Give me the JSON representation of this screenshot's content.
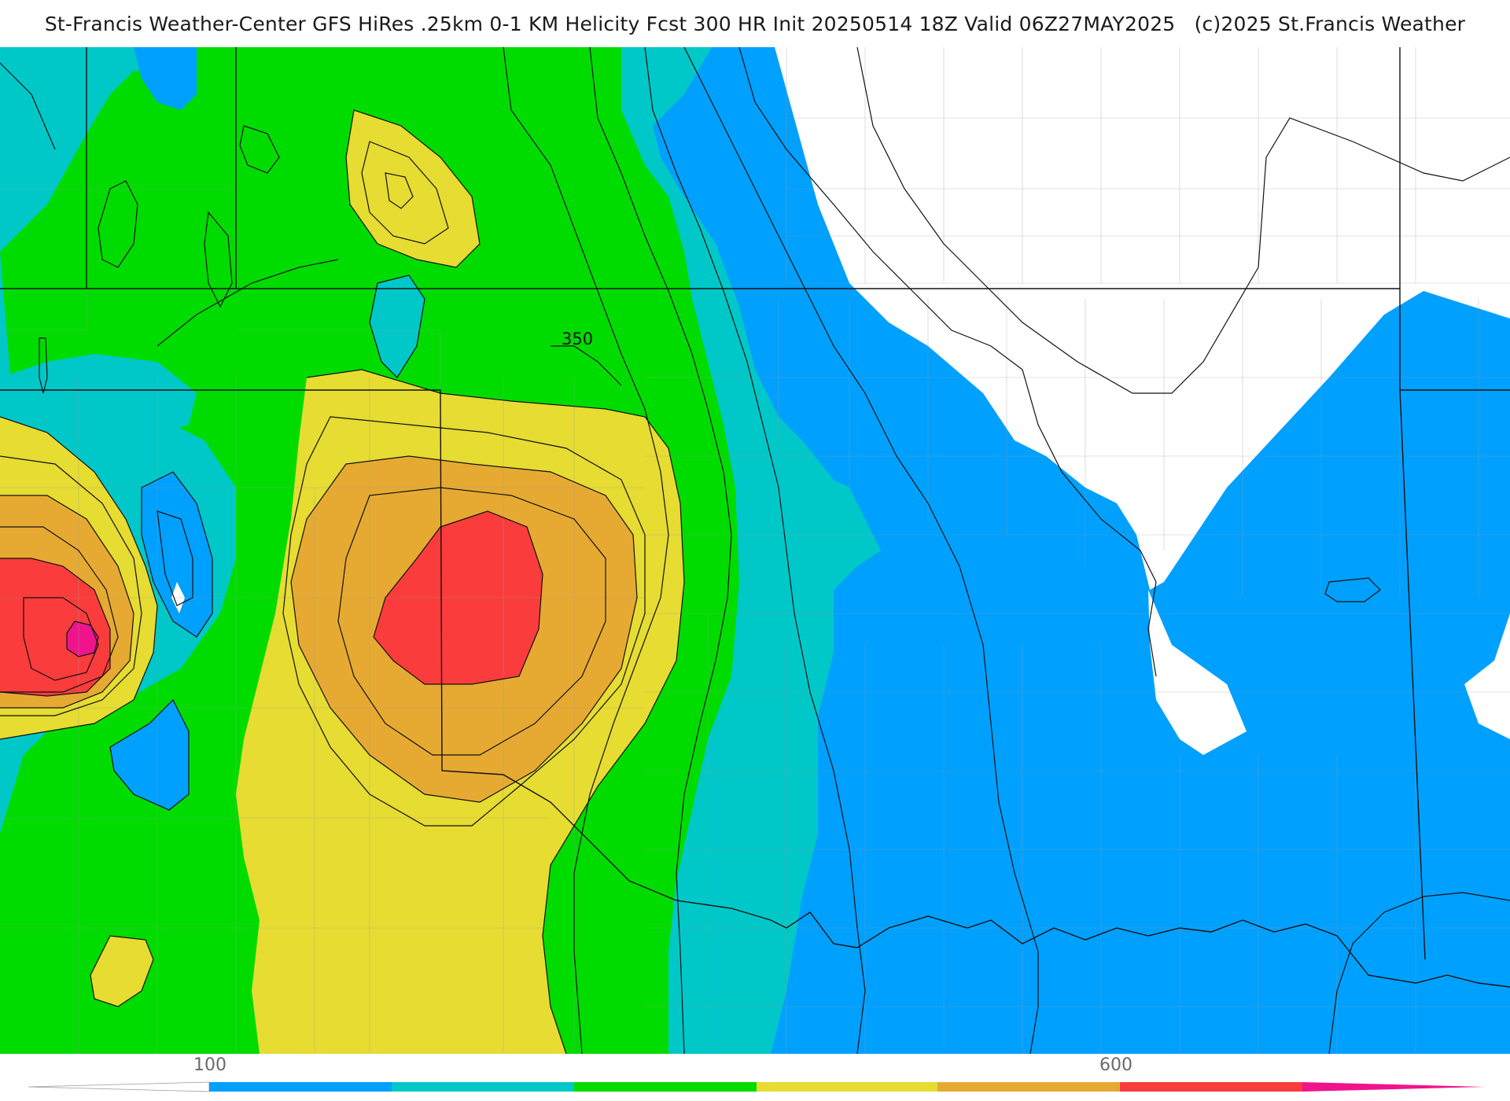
{
  "header": {
    "title": "St-Francis Weather-Center GFS HiRes .25km 0-1 KM Helicity Fcst 300 HR Init 20250514 18Z  Valid 06Z27MAY2025",
    "copyright": "(c)2025 St.Francis Weather"
  },
  "map": {
    "contour_label": "350",
    "fill_colors": {
      "low": "#00a0ff",
      "cyan": "#00c8c8",
      "green": "#00dc00",
      "yellow": "#e6dc32",
      "orange": "#e6aa32",
      "red": "#fa3c3c",
      "magenta": "#f0148c"
    }
  },
  "colorbar": {
    "tick_labels": [
      "100",
      "600"
    ],
    "colors": [
      "#00a0ff",
      "#00c8c8",
      "#00dc00",
      "#e6dc32",
      "#e6aa32",
      "#fa3c3c",
      "#f0148c"
    ]
  }
}
